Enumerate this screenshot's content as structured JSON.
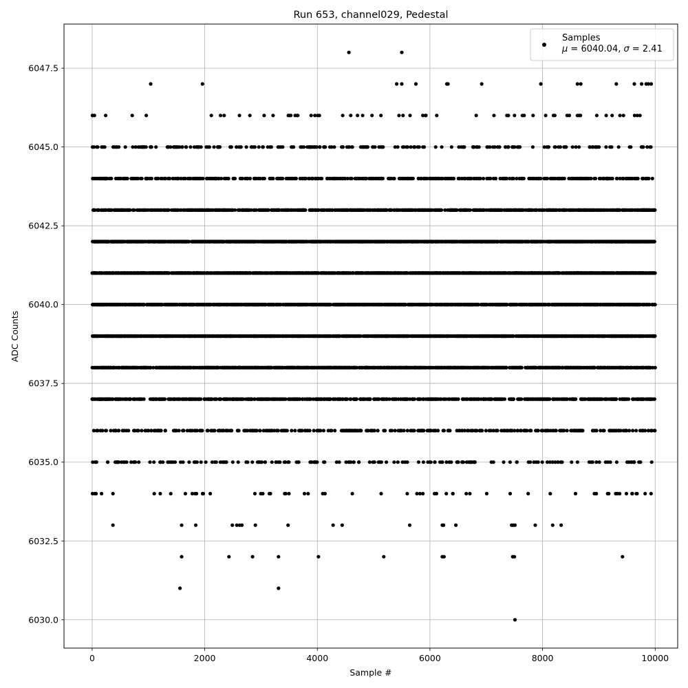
{
  "chart_data": {
    "type": "scatter",
    "title": "Run 653, channel029, Pedestal",
    "xlabel": "Sample #",
    "ylabel": "ADC Counts",
    "xlim": [
      -500,
      10400
    ],
    "ylim": [
      6029.1,
      6048.9
    ],
    "x_ticks": [
      0,
      2000,
      4000,
      6000,
      8000,
      10000
    ],
    "x_tick_labels": [
      "0",
      "2000",
      "4000",
      "6000",
      "8000",
      "10000"
    ],
    "y_ticks": [
      6030.0,
      6032.5,
      6035.0,
      6037.5,
      6040.0,
      6042.5,
      6045.0,
      6047.5
    ],
    "y_tick_labels": [
      "6030.0",
      "6032.5",
      "6035.0",
      "6037.5",
      "6040.0",
      "6042.5",
      "6045.0",
      "6047.5"
    ],
    "grid": true,
    "legend_position": "top-right",
    "series": [
      {
        "name": "Samples",
        "color": "#000000",
        "marker": "dot",
        "n_samples": 10000,
        "levels": [
          {
            "y": 6040,
            "count": 1620
          },
          {
            "y": 6041,
            "count": 1560
          },
          {
            "y": 6039,
            "count": 1500
          },
          {
            "y": 6042,
            "count": 1300
          },
          {
            "y": 6038,
            "count": 1180
          },
          {
            "y": 6043,
            "count": 870
          },
          {
            "y": 6037,
            "count": 690
          },
          {
            "y": 6044,
            "count": 520
          },
          {
            "y": 6036,
            "count": 380
          },
          {
            "y": 6045,
            "count": 220
          },
          {
            "y": 6035,
            "count": 170
          },
          {
            "y": 6046,
            "count": 60
          },
          {
            "y": 6034,
            "count": 60
          }
        ],
        "points": [
          {
            "x": 1560,
            "y": 6031
          },
          {
            "x": 3310,
            "y": 6031
          },
          {
            "x": 7510,
            "y": 6030
          },
          {
            "x": 1590,
            "y": 6032
          },
          {
            "x": 2430,
            "y": 6032
          },
          {
            "x": 2850,
            "y": 6032
          },
          {
            "x": 3310,
            "y": 6032
          },
          {
            "x": 4020,
            "y": 6032
          },
          {
            "x": 5180,
            "y": 6032
          },
          {
            "x": 6220,
            "y": 6032
          },
          {
            "x": 6250,
            "y": 6032
          },
          {
            "x": 7470,
            "y": 6032
          },
          {
            "x": 7500,
            "y": 6032
          },
          {
            "x": 9420,
            "y": 6032
          },
          {
            "x": 370,
            "y": 6033
          },
          {
            "x": 1590,
            "y": 6033
          },
          {
            "x": 1840,
            "y": 6033
          },
          {
            "x": 2490,
            "y": 6033
          },
          {
            "x": 2570,
            "y": 6033
          },
          {
            "x": 2620,
            "y": 6033
          },
          {
            "x": 2660,
            "y": 6033
          },
          {
            "x": 2900,
            "y": 6033
          },
          {
            "x": 3480,
            "y": 6033
          },
          {
            "x": 4280,
            "y": 6033
          },
          {
            "x": 4440,
            "y": 6033
          },
          {
            "x": 5640,
            "y": 6033
          },
          {
            "x": 6220,
            "y": 6033
          },
          {
            "x": 6240,
            "y": 6033
          },
          {
            "x": 6460,
            "y": 6033
          },
          {
            "x": 7450,
            "y": 6033
          },
          {
            "x": 7480,
            "y": 6033
          },
          {
            "x": 7510,
            "y": 6033
          },
          {
            "x": 7870,
            "y": 6033
          },
          {
            "x": 8180,
            "y": 6033
          },
          {
            "x": 8330,
            "y": 6033
          },
          {
            "x": 1040,
            "y": 6047
          },
          {
            "x": 1960,
            "y": 6047
          },
          {
            "x": 5410,
            "y": 6047
          },
          {
            "x": 5500,
            "y": 6047
          },
          {
            "x": 5750,
            "y": 6047
          },
          {
            "x": 6300,
            "y": 6047
          },
          {
            "x": 6320,
            "y": 6047
          },
          {
            "x": 6920,
            "y": 6047
          },
          {
            "x": 7970,
            "y": 6047
          },
          {
            "x": 8620,
            "y": 6047
          },
          {
            "x": 8680,
            "y": 6047
          },
          {
            "x": 9310,
            "y": 6047
          },
          {
            "x": 9630,
            "y": 6047
          },
          {
            "x": 9760,
            "y": 6047
          },
          {
            "x": 9840,
            "y": 6047
          },
          {
            "x": 9880,
            "y": 6047
          },
          {
            "x": 9930,
            "y": 6047
          },
          {
            "x": 4560,
            "y": 6048
          },
          {
            "x": 5500,
            "y": 6048
          }
        ]
      }
    ],
    "legend": {
      "label": "Samples",
      "stats_mu": "6040.04",
      "stats_sigma": "2.41"
    }
  }
}
